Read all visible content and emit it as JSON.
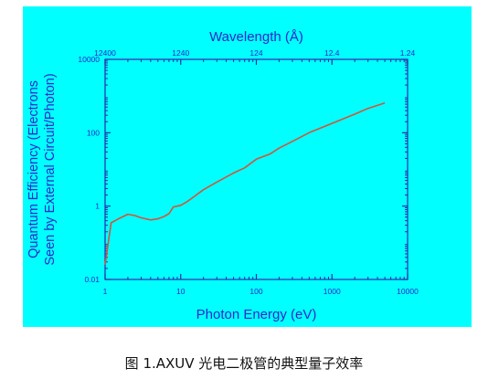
{
  "chart_data": {
    "type": "line",
    "title": "",
    "xlabel": "Photon Energy (eV)",
    "ylabel": "Quantum Efficiency (Electrons Seen by External Circuit/Photon)",
    "ylabel_lines": [
      "Quantum Efficiency (Electrons",
      "Seen by External Circuit/Photon)"
    ],
    "x2label": "Wavelength (Å)",
    "xscale": "log",
    "yscale": "log",
    "xlim": [
      1,
      10000
    ],
    "ylim": [
      0.01,
      10000
    ],
    "x_ticks": [
      {
        "value": 1,
        "label": "1"
      },
      {
        "value": 10,
        "label": "10"
      },
      {
        "value": 100,
        "label": "100"
      },
      {
        "value": 1000,
        "label": "1000"
      },
      {
        "value": 10000,
        "label": "10000"
      }
    ],
    "y_ticks": [
      {
        "value": 0.01,
        "label": "0.01"
      },
      {
        "value": 1,
        "label": "1"
      },
      {
        "value": 100,
        "label": "100"
      },
      {
        "value": 10000,
        "label": "10000"
      }
    ],
    "x2_ticks": [
      {
        "energy": 1,
        "label": "12400"
      },
      {
        "energy": 10,
        "label": "1240"
      },
      {
        "energy": 100,
        "label": "124"
      },
      {
        "energy": 1000,
        "label": "12.4"
      },
      {
        "energy": 10000,
        "label": "1.24"
      }
    ],
    "grid": false,
    "legend": "none",
    "series": [
      {
        "x": [
          1.0,
          1.2,
          1.5,
          2.0,
          2.5,
          3.0,
          4.0,
          5.0,
          6.0,
          7.0,
          8.0,
          9.0,
          10,
          12,
          15,
          20,
          30,
          50,
          70,
          100,
          150,
          200,
          300,
          500,
          1000,
          2000,
          3000,
          5000
        ],
        "y": [
          0.025,
          0.35,
          0.45,
          0.6,
          0.55,
          0.48,
          0.42,
          0.45,
          0.52,
          0.62,
          0.95,
          1.0,
          1.05,
          1.3,
          1.8,
          2.8,
          4.5,
          8.0,
          11,
          19,
          26,
          38,
          58,
          100,
          180,
          320,
          460,
          650
        ]
      }
    ],
    "colors": {
      "background": "#00ffff",
      "axis": "#2a2aa8",
      "text": "#2828c8",
      "line": "#d2553a"
    }
  },
  "caption": "图 1.AXUV 光电二极管的典型量子效率"
}
